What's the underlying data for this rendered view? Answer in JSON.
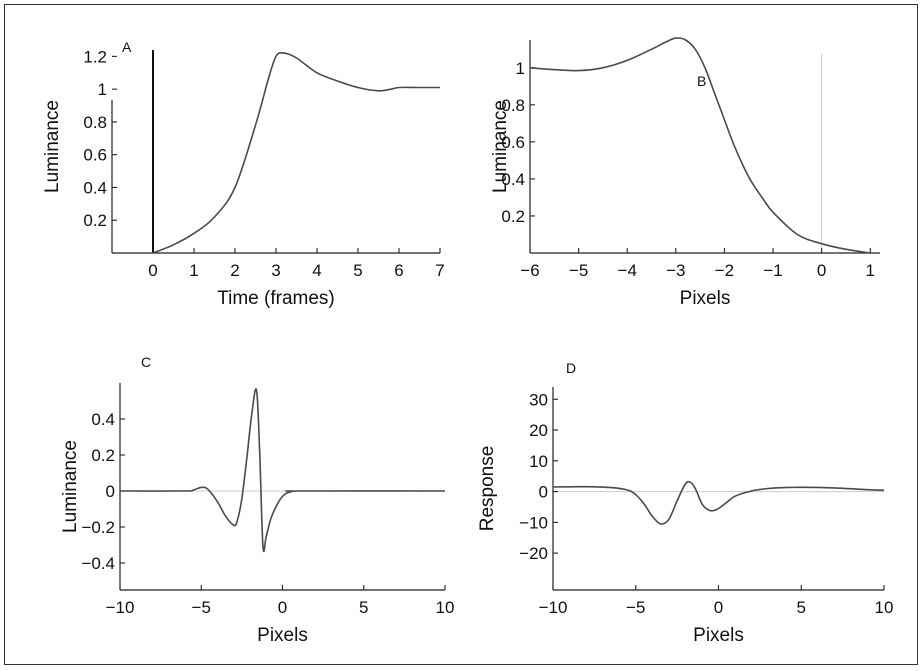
{
  "chart_data": [
    {
      "panel": "A",
      "type": "line",
      "xlabel": "Time (frames)",
      "ylabel": "Luminance",
      "xlim": [
        -1,
        7
      ],
      "ylim": [
        0,
        1.3
      ],
      "xticks": [
        0,
        1,
        2,
        3,
        4,
        5,
        6,
        7
      ],
      "yticks": [
        0.2,
        0.4,
        0.6,
        0.8,
        1,
        1.2
      ],
      "vertical_line_x": 0,
      "series": [
        {
          "x": [
            0,
            0.5,
            1,
            1.5,
            2,
            2.5,
            2.8,
            3,
            3.2,
            3.5,
            4,
            4.5,
            5,
            5.5,
            5.8,
            6,
            6.5,
            7
          ],
          "y": [
            0,
            0.05,
            0.12,
            0.22,
            0.4,
            0.78,
            1.05,
            1.2,
            1.22,
            1.19,
            1.1,
            1.05,
            1.01,
            0.99,
            1.0,
            1.01,
            1.01,
            1.01
          ]
        }
      ]
    },
    {
      "panel": "B",
      "type": "line",
      "xlabel": "Pixels",
      "ylabel": "Luminance",
      "xlim": [
        -6,
        1.2
      ],
      "ylim": [
        0,
        1.15
      ],
      "xticks": [
        -6,
        -5,
        -4,
        -3,
        -2,
        -1,
        0,
        1
      ],
      "yticks": [
        0.2,
        0.4,
        0.6,
        0.8,
        1
      ],
      "vertical_line_x": 0,
      "series": [
        {
          "x": [
            -6,
            -5.5,
            -5,
            -4.5,
            -4,
            -3.5,
            -3.2,
            -3,
            -2.8,
            -2.6,
            -2.4,
            -2.2,
            -2,
            -1.8,
            -1.5,
            -1.2,
            -1,
            -0.5,
            0,
            0.5,
            1
          ],
          "y": [
            1.0,
            0.99,
            0.985,
            1.0,
            1.04,
            1.1,
            1.14,
            1.16,
            1.15,
            1.1,
            1.0,
            0.86,
            0.72,
            0.58,
            0.41,
            0.29,
            0.22,
            0.1,
            0.05,
            0.02,
            0.0
          ]
        }
      ]
    },
    {
      "panel": "C",
      "type": "line",
      "xlabel": "Pixels",
      "ylabel": "Luminance",
      "xlim": [
        -10,
        10
      ],
      "ylim": [
        -0.55,
        0.6
      ],
      "xticks": [
        -10,
        -5,
        0,
        5,
        10
      ],
      "yticks": [
        -0.4,
        -0.2,
        0,
        0.2,
        0.4
      ],
      "series": [
        {
          "x": [
            -10,
            -6,
            -5.5,
            -5,
            -4.6,
            -4,
            -3.5,
            -3,
            -2.8,
            -2.5,
            -2.2,
            -1.9,
            -1.6,
            -1.4,
            -1.2,
            -1.0,
            -0.7,
            -0.3,
            0,
            0.3,
            0.6,
            1,
            10
          ],
          "y": [
            0,
            0,
            0.005,
            0.02,
            0.01,
            -0.06,
            -0.14,
            -0.19,
            -0.17,
            -0.04,
            0.18,
            0.42,
            0.56,
            0.2,
            -0.31,
            -0.25,
            -0.15,
            -0.07,
            -0.03,
            -0.01,
            -0.002,
            0,
            0
          ]
        }
      ]
    },
    {
      "panel": "D",
      "type": "line",
      "xlabel": "Pixels",
      "ylabel": "Response",
      "xlim": [
        -10,
        10
      ],
      "ylim": [
        -32,
        34
      ],
      "xticks": [
        -10,
        -5,
        0,
        5,
        10
      ],
      "yticks": [
        -20,
        -10,
        0,
        10,
        20,
        30
      ],
      "series": [
        {
          "x": [
            -10,
            -8,
            -6.5,
            -5.5,
            -5,
            -4.5,
            -4,
            -3.5,
            -3,
            -2.5,
            -2,
            -1.7,
            -1.4,
            -1,
            -0.6,
            -0.3,
            0,
            0.5,
            1,
            2,
            3,
            4,
            5,
            7,
            9,
            10
          ],
          "y": [
            1.5,
            1.6,
            1.3,
            0.5,
            -1,
            -4,
            -8,
            -10.5,
            -9,
            -3,
            2.5,
            3,
            1,
            -4,
            -6,
            -6.2,
            -5.5,
            -3.5,
            -1.5,
            0.2,
            1,
            1.3,
            1.4,
            1.2,
            0.6,
            0.4
          ]
        }
      ]
    }
  ]
}
